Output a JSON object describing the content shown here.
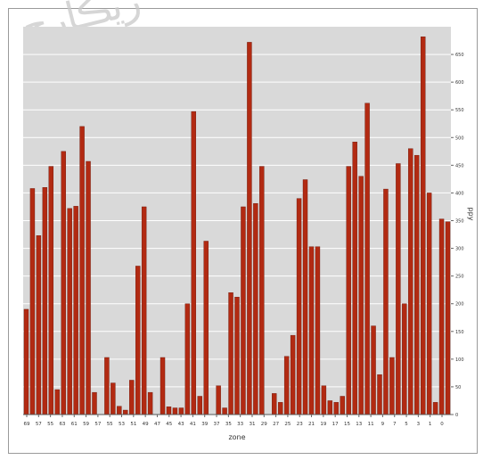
{
  "chart_data": {
    "type": "bar",
    "xlabel": "zone",
    "ylabel": "ppy",
    "ylim": [
      0,
      700
    ],
    "yticks": [
      0,
      50,
      100,
      150,
      200,
      250,
      300,
      350,
      400,
      450,
      500,
      550,
      600,
      650
    ],
    "xticks": [
      "69",
      "57",
      "55",
      "63",
      "61",
      "59",
      "57",
      "55",
      "53",
      "51",
      "49",
      "47",
      "45",
      "43",
      "41",
      "39",
      "37",
      "35",
      "33",
      "31",
      "29",
      "27",
      "25",
      "23",
      "21",
      "19",
      "17",
      "15",
      "13",
      "11",
      "9",
      "7",
      "5",
      "3",
      "1",
      "0"
    ],
    "grid": true,
    "bar_color": "#b22a12",
    "values": [
      190,
      408,
      323,
      410,
      448,
      45,
      475,
      372,
      376,
      520,
      457,
      40,
      0,
      103,
      57,
      15,
      8,
      62,
      268,
      375,
      40,
      0,
      103,
      14,
      12,
      12,
      200,
      547,
      33,
      313,
      0,
      52,
      12,
      220,
      212,
      375,
      672,
      381,
      448,
      0,
      38,
      22,
      105,
      143,
      390,
      424,
      303,
      303,
      52,
      25,
      22,
      33,
      448,
      492,
      430,
      562,
      160,
      72,
      407,
      103,
      453,
      200,
      480,
      468,
      682,
      400,
      22,
      353,
      348
    ]
  },
  "watermark": {
    "text": "ريڪارچ"
  }
}
